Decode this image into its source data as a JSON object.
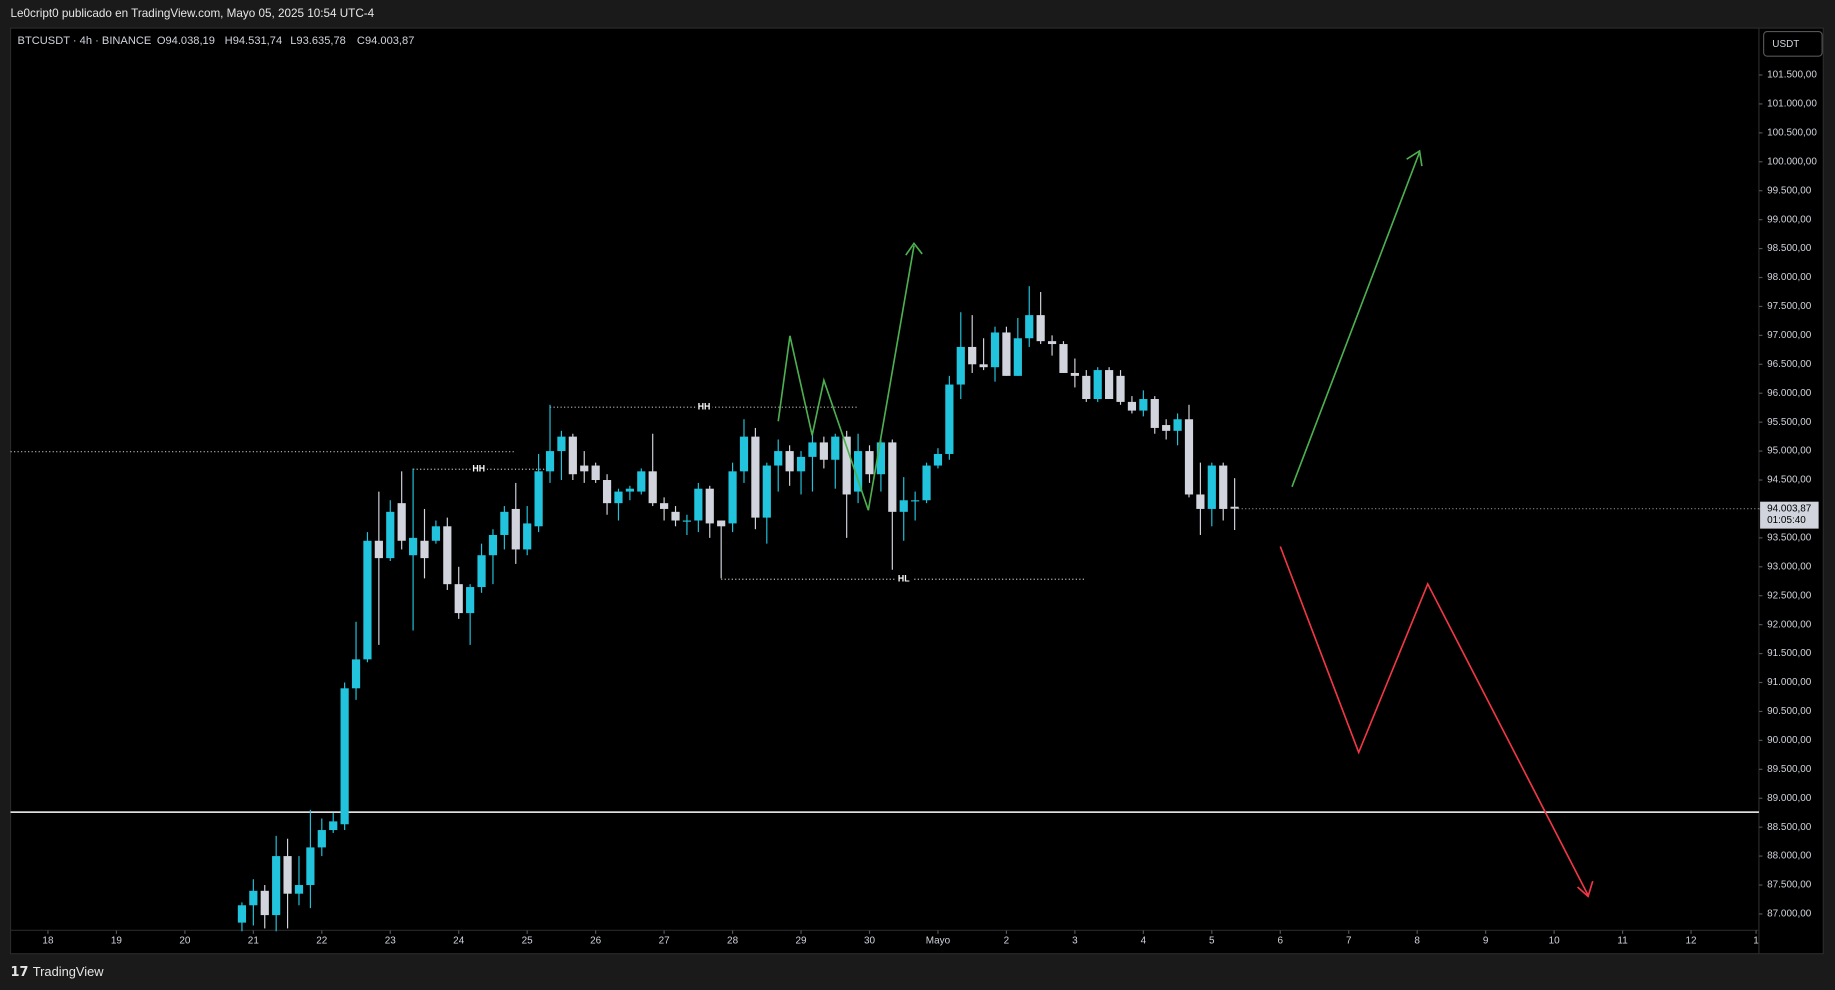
{
  "header": "Le0cript0 publicado en TradingView.com, Mayo 05, 2025 10:54 UTC-4",
  "legend": {
    "symbol": "BTCUSDT · 4h · BINANCE",
    "open": "O94.038,19",
    "high": "H94.531,74",
    "low": "L93.635,78",
    "close": "C94.003,87"
  },
  "currency_button": "USDT",
  "footer": "TradingView",
  "chart_data": {
    "type": "candlestick",
    "open": [
      86850,
      87150,
      87400,
      86980,
      88000,
      87350,
      87500,
      88150,
      88450,
      88550,
      90900,
      91400,
      93450,
      93150,
      94100,
      93200,
      93450,
      93450,
      93700,
      92700,
      92200,
      92650,
      93200,
      93550,
      94000,
      93300,
      93700,
      94650,
      95000,
      95250,
      94750,
      94750,
      94500,
      94100,
      94300,
      94300,
      94650,
      94100,
      93950,
      93800,
      93800,
      94350,
      93800,
      93750,
      94650,
      95250,
      93850,
      94750,
      95000,
      94650,
      94900,
      95150,
      94850,
      95250,
      94300,
      95000,
      94600,
      95150,
      93950,
      94150,
      94150,
      94750,
      94950,
      96150,
      96800,
      96500,
      96450,
      97050,
      96300,
      96950,
      97350,
      96900,
      96850,
      96350,
      96300,
      95900,
      96400,
      96300,
      95850,
      95700,
      95900,
      95450,
      95350,
      95550,
      94250,
      94000,
      94750,
      94038.19
    ],
    "high": [
      87200,
      87600,
      87500,
      88350,
      88300,
      88000,
      88800,
      88650,
      88750,
      91000,
      92050,
      93600,
      94300,
      94150,
      94650,
      94700,
      94000,
      93800,
      93850,
      93000,
      92700,
      93400,
      93650,
      94050,
      94450,
      94050,
      94950,
      95800,
      95350,
      95300,
      95000,
      94800,
      94600,
      94350,
      94400,
      94700,
      95300,
      94200,
      94050,
      93900,
      94450,
      94400,
      93800,
      94800,
      95550,
      95400,
      94800,
      95200,
      95100,
      95000,
      95350,
      95250,
      95300,
      95350,
      95300,
      95100,
      95200,
      95200,
      94550,
      94300,
      94800,
      95050,
      96300,
      97400,
      97350,
      96950,
      97150,
      97150,
      97300,
      97850,
      97750,
      97000,
      96900,
      96600,
      96400,
      96450,
      96450,
      96400,
      95950,
      96050,
      95950,
      95550,
      95650,
      95800,
      94800,
      94800,
      94800,
      94531.74
    ],
    "low": [
      86700,
      86800,
      86750,
      86700,
      86750,
      87150,
      87100,
      88000,
      88400,
      88450,
      90700,
      91350,
      91650,
      93100,
      93300,
      91900,
      92800,
      93400,
      92600,
      92100,
      91650,
      92550,
      92700,
      93300,
      93050,
      93200,
      93600,
      94450,
      94500,
      94500,
      94450,
      94450,
      93900,
      93800,
      94150,
      94250,
      94050,
      93800,
      93700,
      93550,
      93600,
      93500,
      92800,
      93600,
      94450,
      93650,
      93400,
      94300,
      94400,
      94250,
      94300,
      94700,
      94350,
      93500,
      94100,
      94450,
      94300,
      92950,
      93450,
      93800,
      94100,
      94700,
      94850,
      95900,
      96350,
      96400,
      96200,
      96300,
      96300,
      96800,
      96850,
      96650,
      96350,
      96100,
      95850,
      95850,
      95900,
      95800,
      95650,
      95600,
      95300,
      95200,
      95100,
      94200,
      93550,
      93700,
      93800,
      93635.78
    ],
    "close": [
      87150,
      87400,
      86980,
      88000,
      87350,
      87500,
      88150,
      88450,
      88600,
      90900,
      91400,
      93450,
      93150,
      93950,
      93450,
      93500,
      93150,
      93700,
      92700,
      92200,
      92650,
      93200,
      93550,
      93950,
      93300,
      93750,
      94650,
      95000,
      95250,
      94600,
      94650,
      94500,
      94100,
      94300,
      94350,
      94650,
      94100,
      94000,
      93800,
      93800,
      94350,
      93750,
      93700,
      94650,
      95250,
      93850,
      94750,
      95000,
      94650,
      94900,
      95150,
      94850,
      95250,
      94250,
      95000,
      94600,
      95150,
      93950,
      94150,
      94150,
      94750,
      94950,
      96150,
      96800,
      96500,
      96450,
      97050,
      96300,
      96950,
      97350,
      96900,
      96850,
      96350,
      96300,
      95900,
      96400,
      95900,
      95850,
      95700,
      95900,
      95400,
      95350,
      95550,
      94250,
      94000,
      94750,
      94000,
      94003.87
    ],
    "up_color": "#22c3dc",
    "down_color": "#d1d4dc",
    "xlim": [
      -20.28,
      132.95
    ],
    "xticks": [
      {
        "value": -17,
        "label": "18"
      },
      {
        "value": -11,
        "label": "19"
      },
      {
        "value": -5,
        "label": "20"
      },
      {
        "value": 1,
        "label": "21"
      },
      {
        "value": 7,
        "label": "22"
      },
      {
        "value": 13,
        "label": "23"
      },
      {
        "value": 19,
        "label": "24"
      },
      {
        "value": 25,
        "label": "25"
      },
      {
        "value": 31,
        "label": "26"
      },
      {
        "value": 37,
        "label": "27"
      },
      {
        "value": 43,
        "label": "28"
      },
      {
        "value": 49,
        "label": "29"
      },
      {
        "value": 55,
        "label": "30"
      },
      {
        "value": 61,
        "label": "Mayo"
      },
      {
        "value": 67,
        "label": "2"
      },
      {
        "value": 73,
        "label": "3"
      },
      {
        "value": 79,
        "label": "4"
      },
      {
        "value": 85,
        "label": "5"
      },
      {
        "value": 91,
        "label": "6"
      },
      {
        "value": 97,
        "label": "7"
      },
      {
        "value": 103,
        "label": "8"
      },
      {
        "value": 109,
        "label": "9"
      },
      {
        "value": 115,
        "label": "10"
      },
      {
        "value": 121,
        "label": "11"
      },
      {
        "value": 127,
        "label": "12"
      },
      {
        "value": 132.7,
        "label": "1"
      }
    ],
    "ylim": [
      86717,
      102311
    ],
    "yticks": [
      {
        "value": 87000,
        "label": "87.000,00"
      },
      {
        "value": 87500,
        "label": "87.500,00"
      },
      {
        "value": 88000,
        "label": "88.000,00"
      },
      {
        "value": 88500,
        "label": "88.500,00"
      },
      {
        "value": 89000,
        "label": "89.000,00"
      },
      {
        "value": 89500,
        "label": "89.500,00"
      },
      {
        "value": 90000,
        "label": "90.000,00"
      },
      {
        "value": 90500,
        "label": "90.500,00"
      },
      {
        "value": 91000,
        "label": "91.000,00"
      },
      {
        "value": 91500,
        "label": "91.500,00"
      },
      {
        "value": 92000,
        "label": "92.000,00"
      },
      {
        "value": 92500,
        "label": "92.500,00"
      },
      {
        "value": 93000,
        "label": "93.000,00"
      },
      {
        "value": 93500,
        "label": "93.500,00"
      },
      {
        "value": 94000,
        "label": "94.000,00"
      },
      {
        "value": 94500,
        "label": "94.500,00"
      },
      {
        "value": 95000,
        "label": "95.000,00"
      },
      {
        "value": 95500,
        "label": "95.500,00"
      },
      {
        "value": 96000,
        "label": "96.000,00"
      },
      {
        "value": 96500,
        "label": "96.500,00"
      },
      {
        "value": 97000,
        "label": "97.000,00"
      },
      {
        "value": 97500,
        "label": "97.500,00"
      },
      {
        "value": 98000,
        "label": "98.000,00"
      },
      {
        "value": 98500,
        "label": "98.500,00"
      },
      {
        "value": 99000,
        "label": "99.000,00"
      },
      {
        "value": 99500,
        "label": "99.500,00"
      },
      {
        "value": 100000,
        "label": "100.000,00"
      },
      {
        "value": 100500,
        "label": "100.500,00"
      },
      {
        "value": 101000,
        "label": "101.000,00"
      },
      {
        "value": 101500,
        "label": "101.500,00"
      }
    ],
    "last_price_label": "94.003,87",
    "countdown": "01:05:40",
    "levels": [
      {
        "value": 88760,
        "style": "solid",
        "from": -20.28,
        "to": 132.95
      },
      {
        "value": 94990,
        "style": "dotted",
        "from": -20.28,
        "to": 24
      }
    ],
    "annotations": [
      {
        "label": "HH",
        "value": 95758,
        "from": 27,
        "to": 54
      },
      {
        "label": "HH",
        "value": 94686,
        "from": 15,
        "to": 26.5
      },
      {
        "label": "HL",
        "value": 92785,
        "from": 42,
        "to": 74
      }
    ]
  }
}
